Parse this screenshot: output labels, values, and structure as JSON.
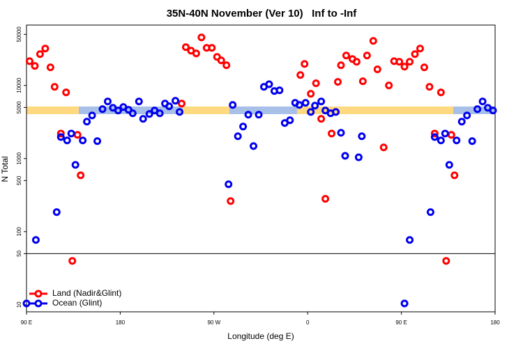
{
  "chart_data": {
    "type": "scatter",
    "title": "35N-40N November (Ver 10)   Inf to -Inf",
    "x_label": "Longitude (deg E)",
    "y_label": "N Total",
    "log_y": true,
    "xlim": [
      90,
      540
    ],
    "xticks": [
      {
        "value": 90,
        "label": "90 E"
      },
      180,
      {
        "value": 270,
        "label": "90 W"
      },
      {
        "value": 360,
        "label": "0"
      },
      {
        "value": 450,
        "label": "90 E"
      },
      {
        "value": 540,
        "label": "180"
      }
    ],
    "ylim": [
      8,
      67000
    ],
    "yticks": [
      10,
      50,
      100,
      500,
      1000,
      5000,
      10000,
      50000
    ],
    "hlines": [
      50
    ],
    "legend": "bottom-left",
    "series": [
      {
        "name": "Land (Nadir&Glint)",
        "color": "#ff0000",
        "x": [
          93,
          98,
          103,
          108,
          113,
          117,
          123,
          128,
          134,
          139,
          142,
          239,
          243,
          248,
          253,
          258,
          263,
          268,
          273,
          277,
          282,
          286,
          353,
          357,
          363,
          368,
          373,
          377,
          383,
          389,
          392,
          397,
          403,
          407,
          413,
          417,
          423,
          427,
          433,
          438,
          443,
          448,
          453,
          458,
          463,
          468,
          472,
          477,
          482,
          488,
          493,
          498,
          501
        ],
        "values": [
          21500,
          18500,
          26800,
          32000,
          17700,
          9570,
          2200,
          8030,
          39.8,
          2110,
          590,
          5650,
          33400,
          29900,
          27400,
          45400,
          32700,
          32700,
          24600,
          22000,
          18900,
          262,
          13900,
          19700,
          7690,
          10700,
          3490,
          281,
          2200,
          11200,
          18900,
          25700,
          23000,
          21100,
          11400,
          25700,
          40700,
          16600,
          1420,
          10000,
          21500,
          21100,
          18100,
          21100,
          26800,
          32000,
          17700,
          9570,
          2200,
          8030,
          39.8,
          2110,
          590
        ]
      },
      {
        "name": "Ocean (Glint)",
        "color": "#0000ee",
        "x": [
          90,
          99,
          119,
          123,
          129,
          133,
          137,
          144,
          148,
          153,
          158,
          163,
          168,
          173,
          178,
          183,
          188,
          192,
          198,
          202,
          208,
          213,
          218,
          223,
          227,
          233,
          237,
          284,
          288,
          293,
          298,
          303,
          308,
          313,
          318,
          323,
          328,
          333,
          338,
          343,
          348,
          352,
          358,
          363,
          367,
          373,
          377,
          382,
          387,
          392,
          396,
          409,
          412,
          453,
          458,
          478,
          482,
          488,
          492,
          496,
          503,
          508,
          513,
          518,
          523,
          528,
          533,
          538
        ],
        "values": [
          10.4,
          76.9,
          185,
          1970,
          1770,
          2200,
          820,
          1770,
          3200,
          3890,
          1730,
          4740,
          6040,
          4950,
          4540,
          5070,
          4640,
          4160,
          6040,
          3490,
          4070,
          4540,
          4160,
          5650,
          5180,
          6170,
          4340,
          445,
          5410,
          2020,
          2740,
          3980,
          1480,
          3980,
          9570,
          10400,
          8400,
          8580,
          3060,
          3340,
          5780,
          5410,
          5780,
          4340,
          5290,
          6040,
          4540,
          4160,
          4340,
          2250,
          1090,
          1040,
          2020,
          10.4,
          76.9,
          185,
          1970,
          1770,
          2200,
          820,
          1770,
          3200,
          3890,
          1730,
          4740,
          6040,
          4950,
          4540
        ]
      }
    ]
  }
}
